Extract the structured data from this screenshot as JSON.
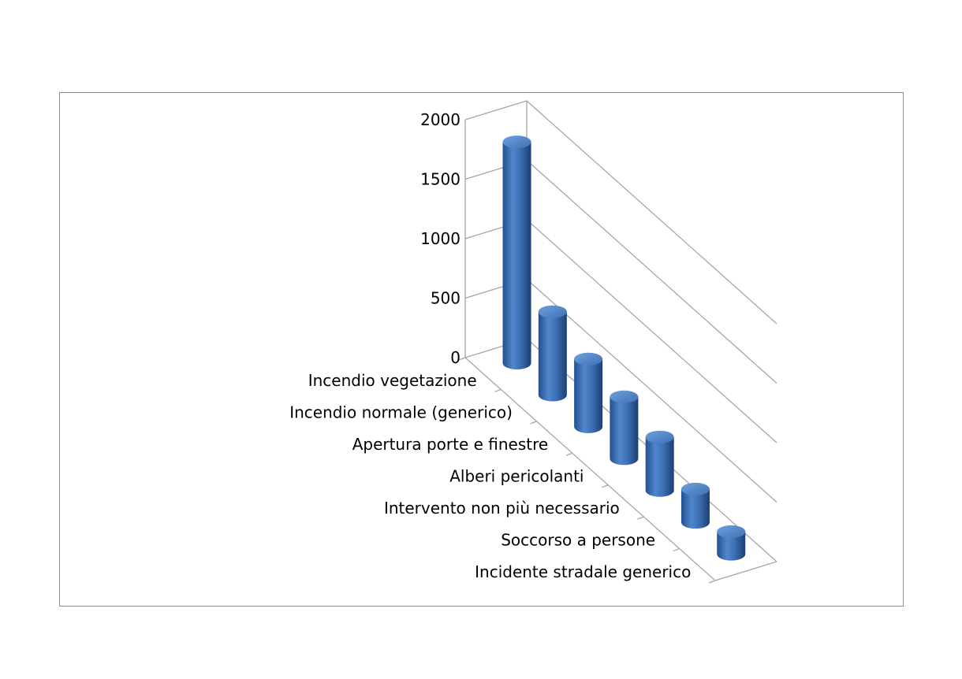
{
  "chart_data": {
    "type": "bar",
    "style": "3d-cylinder",
    "categories": [
      "Incendio vegetazione",
      "Incendio normale (generico)",
      "Apertura porte e finestre",
      "Alberi pericolanti",
      "Intervento non più necessario",
      "Soccorso a persone",
      "Incidente stradale generico"
    ],
    "values": [
      1860,
      700,
      570,
      520,
      450,
      280,
      190
    ],
    "ylim": [
      0,
      2000
    ],
    "yticks": [
      "0",
      "500",
      "1000",
      "1500",
      "2000"
    ],
    "title": "",
    "xlabel": "",
    "ylabel": "",
    "grid": true,
    "legend": "none",
    "bar_color": "#3f72b6"
  }
}
